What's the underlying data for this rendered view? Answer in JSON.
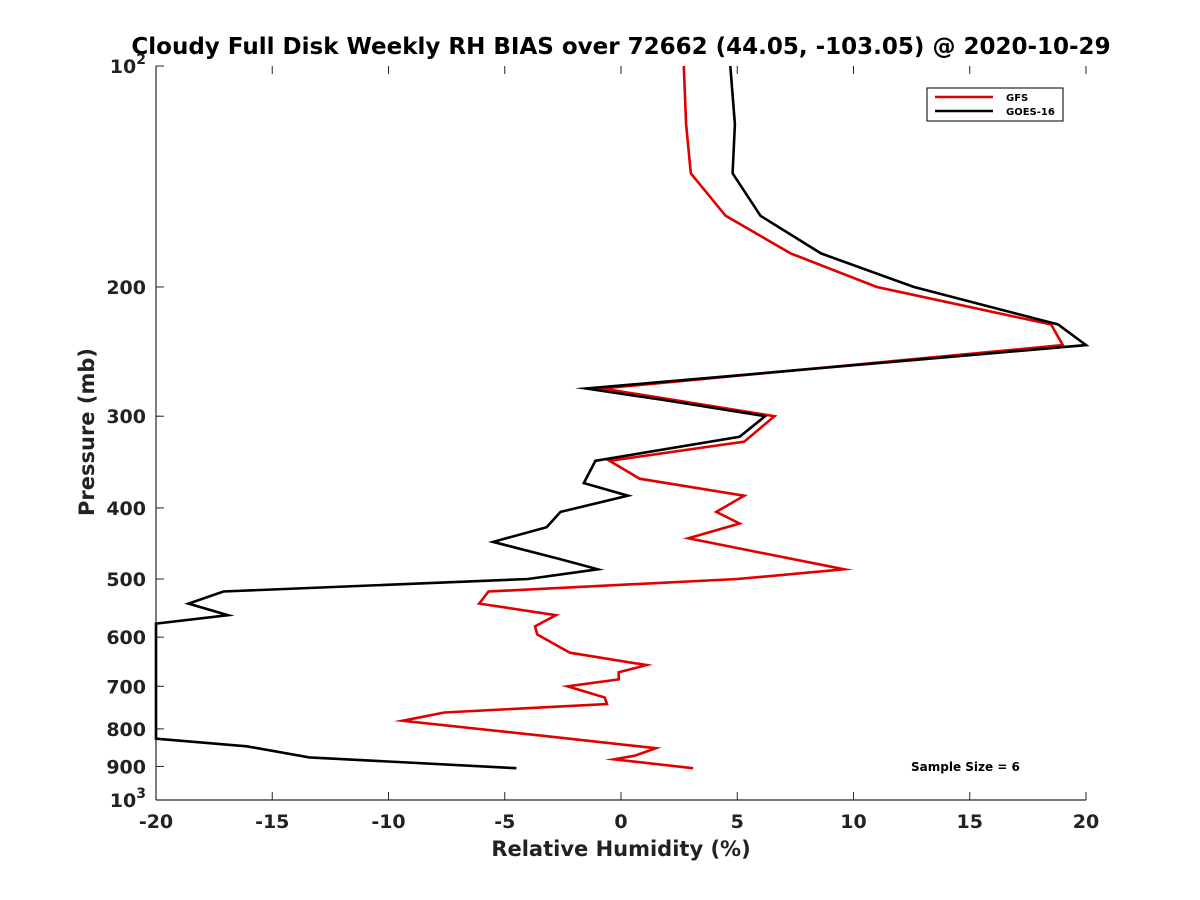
{
  "chart_data": {
    "type": "line",
    "title": "Cloudy Full Disk Weekly RH BIAS over 72662 (44.05, -103.05) @ 2020-10-29",
    "xlabel": "Relative Humidity (%)",
    "ylabel": "Pressure (mb)",
    "xlim": [
      -20,
      20
    ],
    "ylim": [
      100,
      1000
    ],
    "y_scale": "log",
    "y_reversed": true,
    "x_ticks": [
      "-20",
      "-15",
      "-10",
      "-5",
      "0",
      "5",
      "10",
      "15",
      "20"
    ],
    "y_ticks": [
      {
        "base": "10",
        "exp": "2",
        "value": 100
      },
      {
        "label": "200",
        "value": 200
      },
      {
        "label": "300",
        "value": 300
      },
      {
        "label": "400",
        "value": 400
      },
      {
        "label": "500",
        "value": 500
      },
      {
        "label": "600",
        "value": 600
      },
      {
        "label": "700",
        "value": 700
      },
      {
        "label": "800",
        "value": 800
      },
      {
        "label": "900",
        "value": 900
      },
      {
        "base": "10",
        "exp": "3",
        "value": 1000
      }
    ],
    "legend_position": "top-right",
    "annotation": "Sample Size = 6",
    "series": [
      {
        "name": "GFS",
        "color": "#e00000",
        "points": [
          [
            2.7,
            100
          ],
          [
            2.8,
            120
          ],
          [
            3.0,
            140
          ],
          [
            4.5,
            160
          ],
          [
            7.3,
            180
          ],
          [
            11.0,
            200
          ],
          [
            18.5,
            225
          ],
          [
            19.0,
            240
          ],
          [
            -0.8,
            275
          ],
          [
            6.6,
            300
          ],
          [
            5.3,
            325
          ],
          [
            -0.5,
            345
          ],
          [
            0.8,
            365
          ],
          [
            5.3,
            385
          ],
          [
            4.1,
            405
          ],
          [
            5.1,
            420
          ],
          [
            2.9,
            440
          ],
          [
            9.6,
            485
          ],
          [
            5.0,
            500
          ],
          [
            -5.7,
            520
          ],
          [
            -6.1,
            540
          ],
          [
            -2.8,
            560
          ],
          [
            -3.7,
            580
          ],
          [
            -3.6,
            595
          ],
          [
            -2.2,
            630
          ],
          [
            1.1,
            655
          ],
          [
            -0.1,
            670
          ],
          [
            -0.1,
            685
          ],
          [
            -2.3,
            700
          ],
          [
            -0.7,
            725
          ],
          [
            -0.6,
            740
          ],
          [
            -7.6,
            760
          ],
          [
            -9.4,
            780
          ],
          [
            -3.0,
            820
          ],
          [
            1.5,
            850
          ],
          [
            0.6,
            870
          ],
          [
            -0.3,
            880
          ],
          [
            3.1,
            905
          ]
        ]
      },
      {
        "name": "GOES-16",
        "color": "#000000",
        "points": [
          [
            4.7,
            100
          ],
          [
            4.9,
            120
          ],
          [
            4.8,
            140
          ],
          [
            6.0,
            160
          ],
          [
            8.6,
            180
          ],
          [
            12.6,
            200
          ],
          [
            18.8,
            225
          ],
          [
            20.0,
            240
          ],
          [
            -1.5,
            275
          ],
          [
            1.8,
            285
          ],
          [
            6.2,
            300
          ],
          [
            5.1,
            320
          ],
          [
            -1.1,
            345
          ],
          [
            -1.6,
            370
          ],
          [
            0.3,
            385
          ],
          [
            -2.6,
            405
          ],
          [
            -3.2,
            425
          ],
          [
            -5.5,
            445
          ],
          [
            -2.6,
            470
          ],
          [
            -1.0,
            485
          ],
          [
            -4.0,
            500
          ],
          [
            -17.1,
            520
          ],
          [
            -18.6,
            540
          ],
          [
            -16.9,
            560
          ],
          [
            -20.0,
            575
          ],
          [
            -20.0,
            825
          ],
          [
            -16.1,
            845
          ],
          [
            -13.4,
            875
          ],
          [
            -4.5,
            905
          ]
        ]
      }
    ]
  }
}
